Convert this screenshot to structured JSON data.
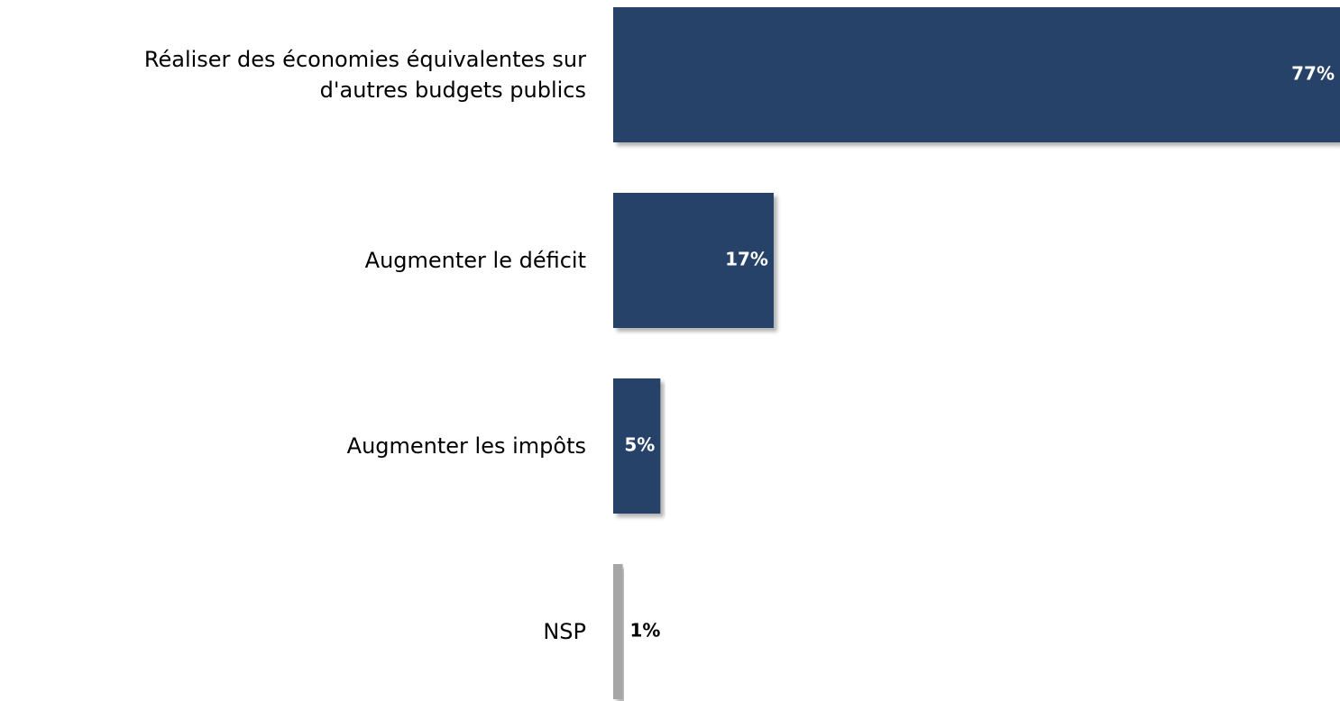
{
  "chart_data": {
    "type": "bar",
    "orientation": "horizontal",
    "categories": [
      "Réaliser des économies équivalentes sur d'autres budgets publics",
      "Augmenter le déficit",
      "Augmenter les impôts",
      "NSP"
    ],
    "values": [
      77,
      17,
      5,
      1
    ],
    "value_labels": [
      "77%",
      "17%",
      "5%",
      "1%"
    ],
    "colors": [
      "#264267",
      "#264267",
      "#264267",
      "#a6a6a6"
    ],
    "xlim": [
      0,
      77
    ]
  }
}
